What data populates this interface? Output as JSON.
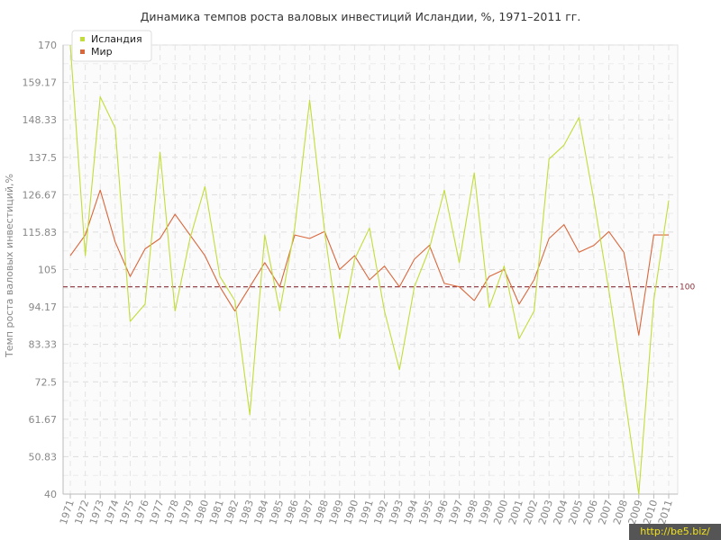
{
  "chart_data": {
    "type": "line",
    "title": "Динамика темпов роста валовых инвестиций Исландии, %, 1971–2011 гг.",
    "xlabel": "",
    "ylabel": "Темп роста валовых инвестиций,%",
    "ylim": [
      40,
      170
    ],
    "yticks": [
      "40",
      "50.83",
      "61.67",
      "72.5",
      "83.33",
      "94.17",
      "105",
      "115.83",
      "126.67",
      "137.5",
      "148.33",
      "159.17",
      "170"
    ],
    "grid": true,
    "legend_position": "top-left",
    "categories": [
      "1971",
      "1972",
      "1973",
      "1974",
      "1975",
      "1976",
      "1977",
      "1978",
      "1979",
      "1980",
      "1981",
      "1982",
      "1983",
      "1984",
      "1985",
      "1986",
      "1987",
      "1988",
      "1989",
      "1990",
      "1991",
      "1992",
      "1993",
      "1994",
      "1995",
      "1996",
      "1997",
      "1998",
      "1999",
      "2000",
      "2001",
      "2002",
      "2003",
      "2004",
      "2005",
      "2006",
      "2007",
      "2008",
      "2009",
      "2010",
      "2011"
    ],
    "series": [
      {
        "name": "Исландия",
        "color": "#c2dd3a",
        "values": [
          170,
          109,
          155,
          146,
          90,
          95,
          139,
          93,
          114,
          129,
          103,
          96,
          63,
          115,
          93,
          117,
          154,
          116,
          85,
          108,
          117,
          93,
          76,
          100,
          111,
          128,
          107,
          133,
          94,
          106,
          85,
          93,
          137,
          141,
          149,
          125,
          99,
          70,
          40,
          96,
          125
        ]
      },
      {
        "name": "Мир",
        "color": "#d9673c",
        "values": [
          109,
          115,
          128,
          113,
          103,
          111,
          114,
          121,
          115,
          109,
          100,
          93,
          100,
          107,
          100,
          115,
          114,
          116,
          105,
          109,
          102,
          106,
          100,
          108,
          112,
          101,
          100,
          96,
          103,
          105,
          95,
          102,
          114,
          118,
          110,
          112,
          116,
          110,
          86,
          115,
          115
        ]
      }
    ],
    "reference_line": {
      "value": 100,
      "label": "100",
      "color": "#8b2f39"
    }
  },
  "watermark": "http://be5.biz/"
}
